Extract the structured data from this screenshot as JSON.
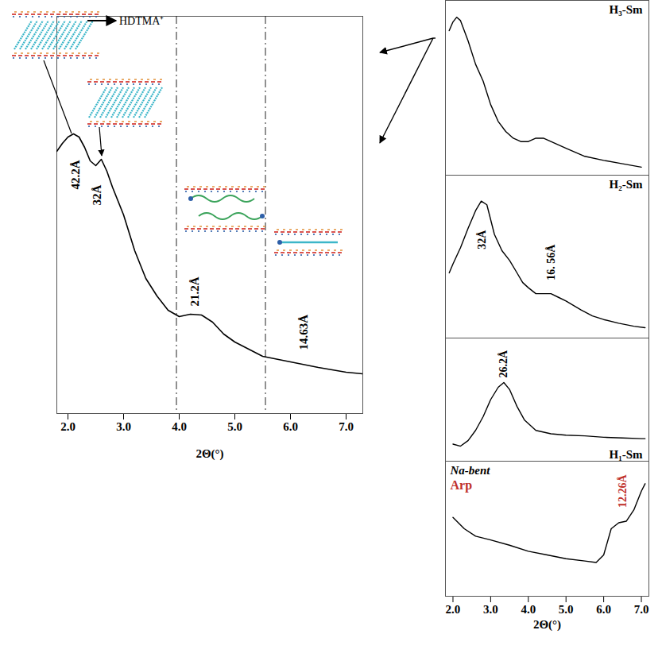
{
  "chart_data": [
    {
      "type": "line",
      "color": "#000000",
      "schematic_label": "HDTMA⁺",
      "xlabel": "2Θ(°)",
      "xlim": [
        1.8,
        7.3
      ],
      "xticks": [
        2,
        3,
        4,
        5,
        6,
        7
      ],
      "ylim": [
        0,
        500
      ],
      "tick_labels": "x",
      "x": [
        1.8,
        1.9,
        2.0,
        2.1,
        2.2,
        2.3,
        2.4,
        2.5,
        2.6,
        2.7,
        2.8,
        3.0,
        3.2,
        3.4,
        3.6,
        3.8,
        4.0,
        4.2,
        4.4,
        4.6,
        4.8,
        5.0,
        5.5,
        6.0,
        6.5,
        7.0,
        7.3
      ],
      "values": [
        330,
        340,
        348,
        352,
        348,
        335,
        318,
        312,
        320,
        305,
        285,
        250,
        205,
        170,
        148,
        130,
        122,
        125,
        124,
        115,
        100,
        90,
        72,
        65,
        58,
        52,
        50
      ],
      "reference_lines": [
        3.95,
        5.55
      ],
      "annotations": [
        {
          "text": "42.2Å",
          "x": 2.14,
          "y": 282
        },
        {
          "text": "32Å",
          "x": 2.53,
          "y": 262
        },
        {
          "text": "21.2Å",
          "x": 4.28,
          "y": 135
        },
        {
          "text": "14.63Å",
          "x": 6.24,
          "y": 80
        }
      ]
    },
    {
      "type": "line",
      "title": "H₃-Sm",
      "color": "#000000",
      "xlim": [
        1.8,
        7.2
      ],
      "ylim": [
        0,
        260
      ],
      "tick_labels": false,
      "x": [
        1.9,
        2.0,
        2.1,
        2.2,
        2.4,
        2.6,
        2.8,
        3.0,
        3.2,
        3.4,
        3.6,
        3.8,
        4.0,
        4.2,
        4.4,
        4.6,
        4.8,
        5.0,
        5.5,
        6.0,
        6.5,
        7.0
      ],
      "values": [
        215,
        228,
        235,
        230,
        200,
        165,
        140,
        105,
        80,
        65,
        55,
        50,
        50,
        55,
        55,
        50,
        45,
        40,
        28,
        22,
        17,
        12
      ],
      "annotations": []
    },
    {
      "type": "line",
      "title": "H₂-Sm",
      "color": "#000000",
      "xlim": [
        1.8,
        7.2
      ],
      "ylim": [
        0,
        220
      ],
      "tick_labels": false,
      "x": [
        1.9,
        2.0,
        2.2,
        2.4,
        2.6,
        2.75,
        2.9,
        3.1,
        3.3,
        3.5,
        3.7,
        3.85,
        4.0,
        4.2,
        4.4,
        4.6,
        4.8,
        5.0,
        5.4,
        5.7,
        6.0,
        6.4,
        6.8,
        7.1
      ],
      "values": [
        88,
        100,
        122,
        148,
        172,
        185,
        180,
        140,
        118,
        105,
        88,
        75,
        68,
        60,
        60,
        60,
        55,
        50,
        38,
        30,
        25,
        20,
        16,
        14
      ],
      "annotations": [
        {
          "text": "32Å",
          "x": 2.78,
          "y": 120
        },
        {
          "text": "16. 56Å",
          "x": 4.6,
          "y": 78
        }
      ]
    },
    {
      "type": "line",
      "title": "H₁-Sm",
      "color": "#000000",
      "xlim": [
        1.8,
        7.2
      ],
      "ylim": [
        0,
        180
      ],
      "tick_labels": false,
      "x": [
        2.0,
        2.2,
        2.4,
        2.6,
        2.8,
        3.0,
        3.2,
        3.35,
        3.5,
        3.7,
        3.9,
        4.2,
        4.6,
        5.0,
        5.5,
        6.0,
        6.5,
        7.0,
        7.1
      ],
      "values": [
        25,
        22,
        30,
        45,
        65,
        90,
        108,
        115,
        105,
        80,
        60,
        45,
        40,
        38,
        37,
        35,
        34,
        33,
        33
      ],
      "annotations": [
        {
          "text": "26.2Å",
          "x": 3.35,
          "y": 122
        }
      ]
    },
    {
      "type": "line",
      "title": "Na-bent",
      "subtitle": "Arp",
      "color": "#000000",
      "xlabel": "2Θ(°)",
      "xlim": [
        1.8,
        7.2
      ],
      "xticks": [
        2,
        3,
        4,
        5,
        6,
        7
      ],
      "ylim": [
        0,
        180
      ],
      "tick_labels": "x",
      "x": [
        2.0,
        2.3,
        2.6,
        3.0,
        3.5,
        4.0,
        4.5,
        5.0,
        5.5,
        5.8,
        6.0,
        6.2,
        6.4,
        6.6,
        6.8,
        7.0,
        7.1
      ],
      "values": [
        105,
        90,
        80,
        75,
        68,
        60,
        55,
        50,
        47,
        45,
        55,
        90,
        98,
        100,
        115,
        140,
        150
      ],
      "annotations": [
        {
          "text": "12.26Å",
          "x": 6.5,
          "y": 118,
          "color": "#c0302a"
        }
      ]
    }
  ]
}
